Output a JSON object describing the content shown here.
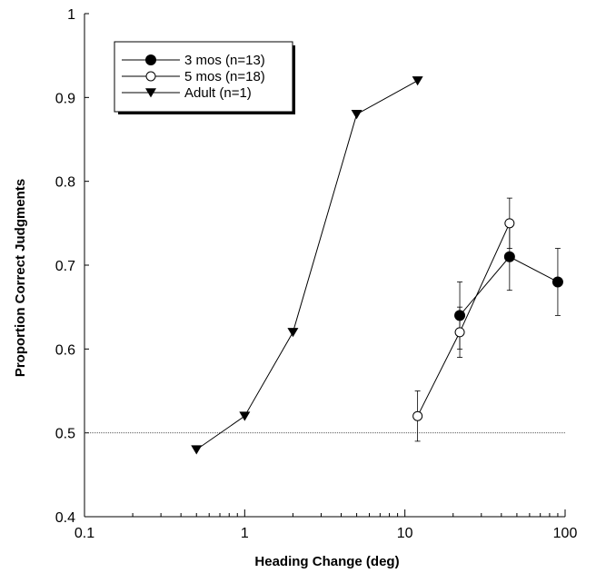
{
  "chart_data": {
    "type": "line",
    "title": "",
    "xlabel": "Heading Change (deg)",
    "ylabel": "Proportion Correct Judgments",
    "x_scale": "log",
    "xlim": [
      0.1,
      100
    ],
    "ylim": [
      0.4,
      1.0
    ],
    "x_ticks": [
      0.1,
      1,
      10,
      100
    ],
    "x_tick_labels": [
      "0.1",
      "1",
      "10",
      "100"
    ],
    "y_ticks": [
      0.4,
      0.5,
      0.6,
      0.7,
      0.8,
      0.9,
      1.0
    ],
    "y_tick_labels": [
      "0.4",
      "0.5",
      "0.6",
      "0.7",
      "0.8",
      "0.9",
      "1"
    ],
    "grid": false,
    "legend_position": "top-left",
    "reference_line": {
      "y": 0.5,
      "style": "dotted"
    },
    "series": [
      {
        "name": "3 mos (n=13)",
        "marker": "filled-circle",
        "points": [
          {
            "x": 22,
            "y": 0.64,
            "err": 0.04
          },
          {
            "x": 45,
            "y": 0.71,
            "err": 0.04
          },
          {
            "x": 90,
            "y": 0.68,
            "err": 0.04
          }
        ]
      },
      {
        "name": "5 mos (n=18)",
        "marker": "open-circle",
        "points": [
          {
            "x": 12,
            "y": 0.52,
            "err": 0.03
          },
          {
            "x": 22,
            "y": 0.62,
            "err": 0.03
          },
          {
            "x": 45,
            "y": 0.75,
            "err": 0.03
          }
        ]
      },
      {
        "name": "Adult (n=1)",
        "marker": "filled-triangle-down",
        "points": [
          {
            "x": 0.5,
            "y": 0.48
          },
          {
            "x": 1,
            "y": 0.52
          },
          {
            "x": 2,
            "y": 0.62
          },
          {
            "x": 5,
            "y": 0.88
          },
          {
            "x": 12,
            "y": 0.92
          }
        ]
      }
    ]
  }
}
